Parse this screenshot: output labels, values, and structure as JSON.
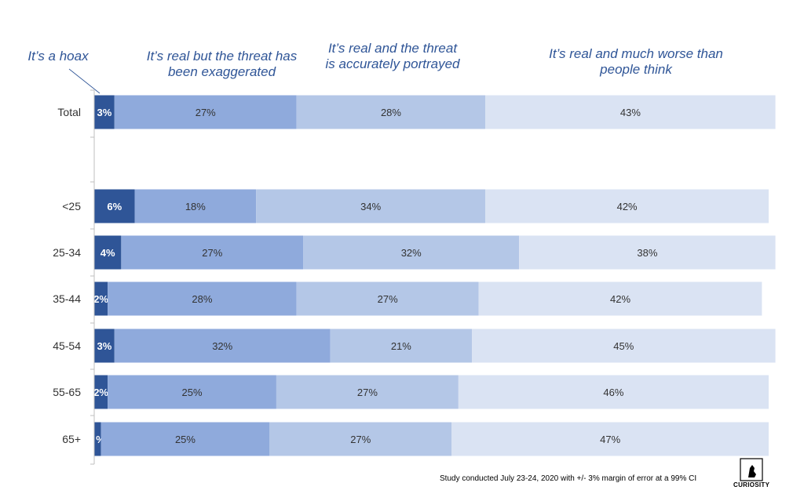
{
  "chart_data": {
    "type": "bar",
    "orientation": "horizontal",
    "stacked": true,
    "percent_stacked": true,
    "categories": [
      "Total",
      "<25",
      "25-34",
      "35-44",
      "45-54",
      "55-65",
      "65+"
    ],
    "series": [
      {
        "name": "It’s a hoax",
        "color": "#2f5597",
        "values": [
          3,
          6,
          4,
          2,
          3,
          2,
          1
        ],
        "labels": [
          "3%",
          "6%",
          "4%",
          "2%",
          "3%",
          "2%",
          "%"
        ]
      },
      {
        "name": "It’s real but the threat has been exaggerated",
        "color": "#8faadc",
        "values": [
          27,
          18,
          27,
          28,
          32,
          25,
          25
        ],
        "labels": [
          "27%",
          "18%",
          "27%",
          "28%",
          "32%",
          "25%",
          "25%"
        ]
      },
      {
        "name": "It’s real and the threat is accurately portrayed",
        "color": "#b4c7e7",
        "values": [
          28,
          34,
          32,
          27,
          21,
          27,
          27
        ],
        "labels": [
          "28%",
          "34%",
          "32%",
          "27%",
          "21%",
          "27%",
          "27%"
        ]
      },
      {
        "name": "It’s real and much worse than people think",
        "color": "#dae3f3",
        "values": [
          43,
          42,
          38,
          42,
          45,
          46,
          47
        ],
        "labels": [
          "43%",
          "42%",
          "38%",
          "42%",
          "45%",
          "46%",
          "47%"
        ]
      }
    ],
    "legend_placement": "top",
    "grid": false
  },
  "legend": [
    "It’s a hoax",
    "It’s real but the threat has been exaggerated",
    "It’s real and the threat is accurately portrayed",
    "It’s real and much worse than people think"
  ],
  "footnote": "Study conducted July 23-24, 2020 with +/- 3% margin of error at a 99% CI",
  "logo": {
    "text": "CURIOSITY"
  }
}
